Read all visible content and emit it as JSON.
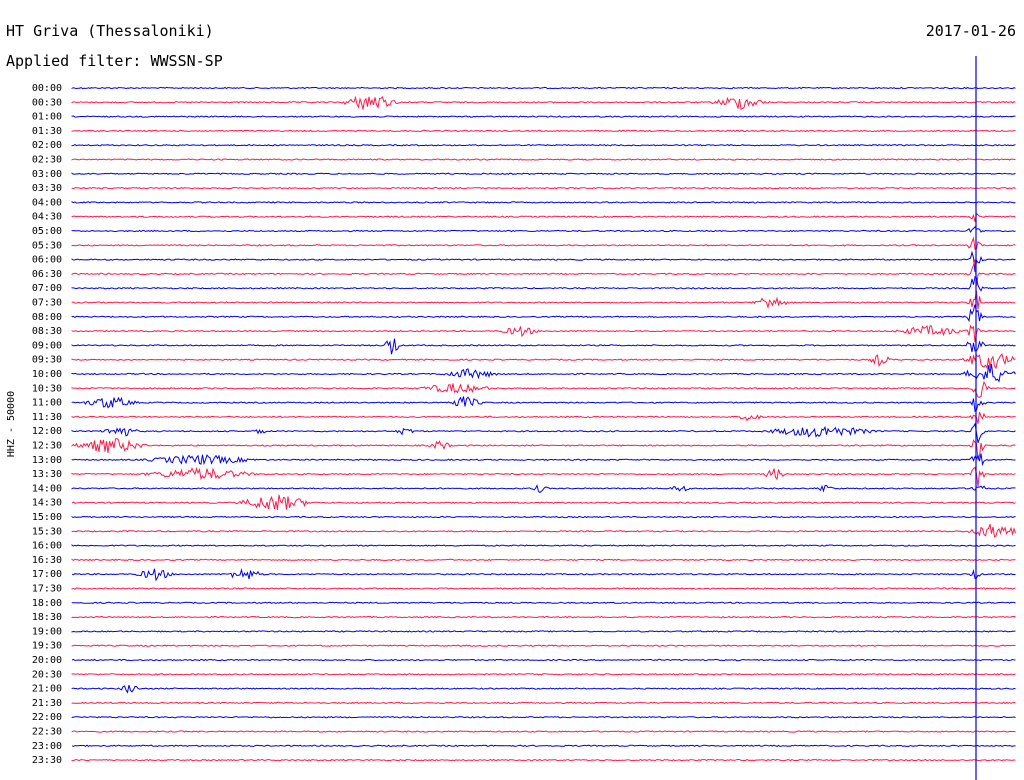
{
  "header": {
    "station": "HT Griva (Thessaloniki)",
    "date": "2017-01-26",
    "filter": "Applied filter: WWSSN-SP"
  },
  "colors": {
    "even_trace": "#0000ee",
    "odd_trace": "#ff1a4a",
    "marker": "#0000ee"
  },
  "chart_data": {
    "type": "line",
    "title": "HT Griva (Thessaloniki)",
    "subtitle": "Applied filter: WWSSN-SP",
    "ylabel": "HHZ - 50000",
    "xlabel": "",
    "rows": [
      "00:00",
      "00:30",
      "01:00",
      "01:30",
      "02:00",
      "02:30",
      "03:00",
      "03:30",
      "04:00",
      "04:30",
      "05:00",
      "05:30",
      "06:00",
      "06:30",
      "07:00",
      "07:30",
      "08:00",
      "08:30",
      "09:00",
      "09:30",
      "10:00",
      "10:30",
      "11:00",
      "11:30",
      "12:00",
      "12:30",
      "13:00",
      "13:30",
      "14:00",
      "14:30",
      "15:00",
      "15:30",
      "16:00",
      "16:30",
      "17:00",
      "17:30",
      "18:00",
      "18:30",
      "19:00",
      "19:30",
      "20:00",
      "20:30",
      "21:00",
      "21:30",
      "22:00",
      "22:30",
      "23:00",
      "23:30"
    ],
    "series": [
      {
        "name": "HHZ",
        "values": []
      }
    ],
    "ylim": [
      0,
      48
    ],
    "xlim": [
      0,
      30
    ],
    "grid": false,
    "legend": "none"
  }
}
